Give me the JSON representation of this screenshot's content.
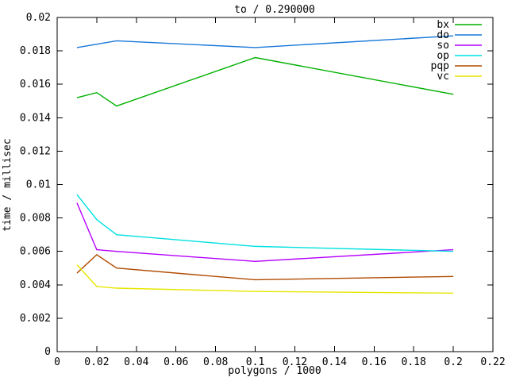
{
  "chart_data": {
    "type": "line",
    "title": "to / 0.290000",
    "xlabel": "polygons / 1000",
    "ylabel": "time / millisec",
    "xlim": [
      0,
      0.22
    ],
    "ylim": [
      0,
      0.02
    ],
    "grid": false,
    "xticks": [
      0,
      0.02,
      0.04,
      0.06,
      0.08,
      0.1,
      0.12,
      0.14,
      0.16,
      0.18,
      0.2,
      0.22
    ],
    "xtick_labels": [
      "0",
      "0.02",
      "0.04",
      "0.06",
      "0.08",
      "0.1",
      "0.12",
      "0.14",
      "0.16",
      "0.18",
      "0.2",
      "0.22"
    ],
    "yticks": [
      0,
      0.002,
      0.004,
      0.006,
      0.008,
      0.01,
      0.012,
      0.014,
      0.016,
      0.018,
      0.02
    ],
    "ytick_labels": [
      "0",
      "0.002",
      "0.004",
      "0.006",
      "0.008",
      "0.01",
      "0.012",
      "0.014",
      "0.016",
      "0.018",
      "0.02"
    ],
    "x": [
      0.01,
      0.02,
      0.03,
      0.1,
      0.2
    ],
    "series": [
      {
        "name": "bx",
        "color": "#00b000",
        "values": [
          0.0152,
          0.0155,
          0.0147,
          0.0176,
          0.0154
        ]
      },
      {
        "name": "do",
        "color": "#1778d9",
        "values": [
          0.0182,
          0.0184,
          0.0186,
          0.0182,
          0.0189
        ]
      },
      {
        "name": "so",
        "color": "#b400ff",
        "values": [
          0.0089,
          0.0061,
          0.006,
          0.0054,
          0.0061
        ]
      },
      {
        "name": "op",
        "color": "#00e0e0",
        "values": [
          0.0094,
          0.0079,
          0.007,
          0.0063,
          0.006
        ]
      },
      {
        "name": "pqp",
        "color": "#b04a00",
        "values": [
          0.0047,
          0.0058,
          0.005,
          0.0043,
          0.0045
        ]
      },
      {
        "name": "vc",
        "color": "#e6e600",
        "values": [
          0.0052,
          0.0039,
          0.0038,
          0.0036,
          0.0035
        ]
      }
    ],
    "legend": {
      "position": "top-right-inside",
      "entries": [
        "bx",
        "do",
        "so",
        "op",
        "pqp",
        "vc"
      ]
    },
    "axis_color": "#000000",
    "background_color": "#ffffff"
  }
}
